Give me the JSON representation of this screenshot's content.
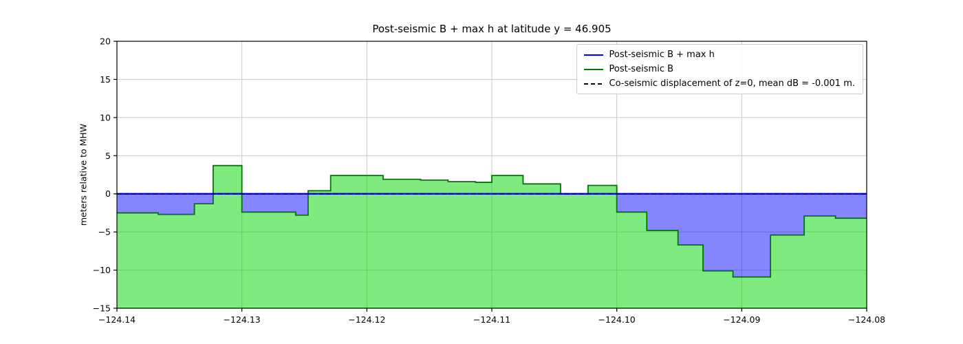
{
  "chart_data": {
    "type": "area",
    "title": "Post-seismic B + max h at latitude y = 46.905",
    "xlabel": "",
    "ylabel": "meters relative to MHW",
    "xlim": [
      -124.14,
      -124.08
    ],
    "ylim": [
      -15,
      20
    ],
    "grid": true,
    "surface_level": 0.0,
    "xticks": [
      {
        "value": -124.14,
        "label": "−124.14"
      },
      {
        "value": -124.13,
        "label": "−124.13"
      },
      {
        "value": -124.12,
        "label": "−124.12"
      },
      {
        "value": -124.11,
        "label": "−124.11"
      },
      {
        "value": -124.1,
        "label": "−124.10"
      },
      {
        "value": -124.09,
        "label": "−124.09"
      },
      {
        "value": -124.08,
        "label": "−124.08"
      }
    ],
    "yticks": [
      {
        "value": 20,
        "label": "20"
      },
      {
        "value": 15,
        "label": "15"
      },
      {
        "value": 10,
        "label": "10"
      },
      {
        "value": 5,
        "label": "5"
      },
      {
        "value": 0,
        "label": "0"
      },
      {
        "value": -5,
        "label": "−5"
      },
      {
        "value": -10,
        "label": "−10"
      },
      {
        "value": -15,
        "label": "−15"
      }
    ],
    "legend": {
      "position": "upper right",
      "entries": [
        {
          "label": "Post-seismic B + max h",
          "style": "solid",
          "color": "#0000ff"
        },
        {
          "label": "Post-seismic B",
          "style": "solid",
          "color": "#007700"
        },
        {
          "label": "Co-seismic displacement of z=0, mean dB = -0.001 m.",
          "style": "dashed",
          "color": "#000000"
        }
      ]
    },
    "series": [
      {
        "name": "Post-seismic B + max h",
        "type": "hline",
        "value": 0.0,
        "color": "#0000ff"
      },
      {
        "name": "Post-seismic B",
        "type": "steps",
        "color": "#007700",
        "fill": "#00d500",
        "edges": [
          -124.14,
          -124.1367,
          -124.1338,
          -124.1323,
          -124.13,
          -124.1257,
          -124.1247,
          -124.1229,
          -124.1187,
          -124.1157,
          -124.1135,
          -124.1113,
          -124.11,
          -124.1075,
          -124.1045,
          -124.1023,
          -124.1,
          -124.0976,
          -124.0951,
          -124.0931,
          -124.0907,
          -124.0877,
          -124.085,
          -124.0825,
          -124.08
        ],
        "values": [
          -2.5,
          -2.7,
          -1.3,
          3.7,
          -2.4,
          -2.8,
          0.4,
          2.4,
          1.9,
          1.8,
          1.6,
          1.5,
          2.4,
          1.3,
          0.0,
          1.1,
          -2.4,
          -4.8,
          -6.7,
          -10.1,
          -10.9,
          -5.4,
          -2.9,
          -3.2
        ]
      },
      {
        "name": "Co-seismic displacement of z=0",
        "type": "hline",
        "value": 0.0,
        "style": "dashed",
        "color": "#000000"
      }
    ],
    "colors": {
      "grid": "#c8c8c8",
      "frame": "#000000",
      "b_line": "#007700",
      "b_fill": "#00d500",
      "water_fill": "#0000ff",
      "surface_line": "#0000ff",
      "zero_line": "#000000"
    }
  }
}
